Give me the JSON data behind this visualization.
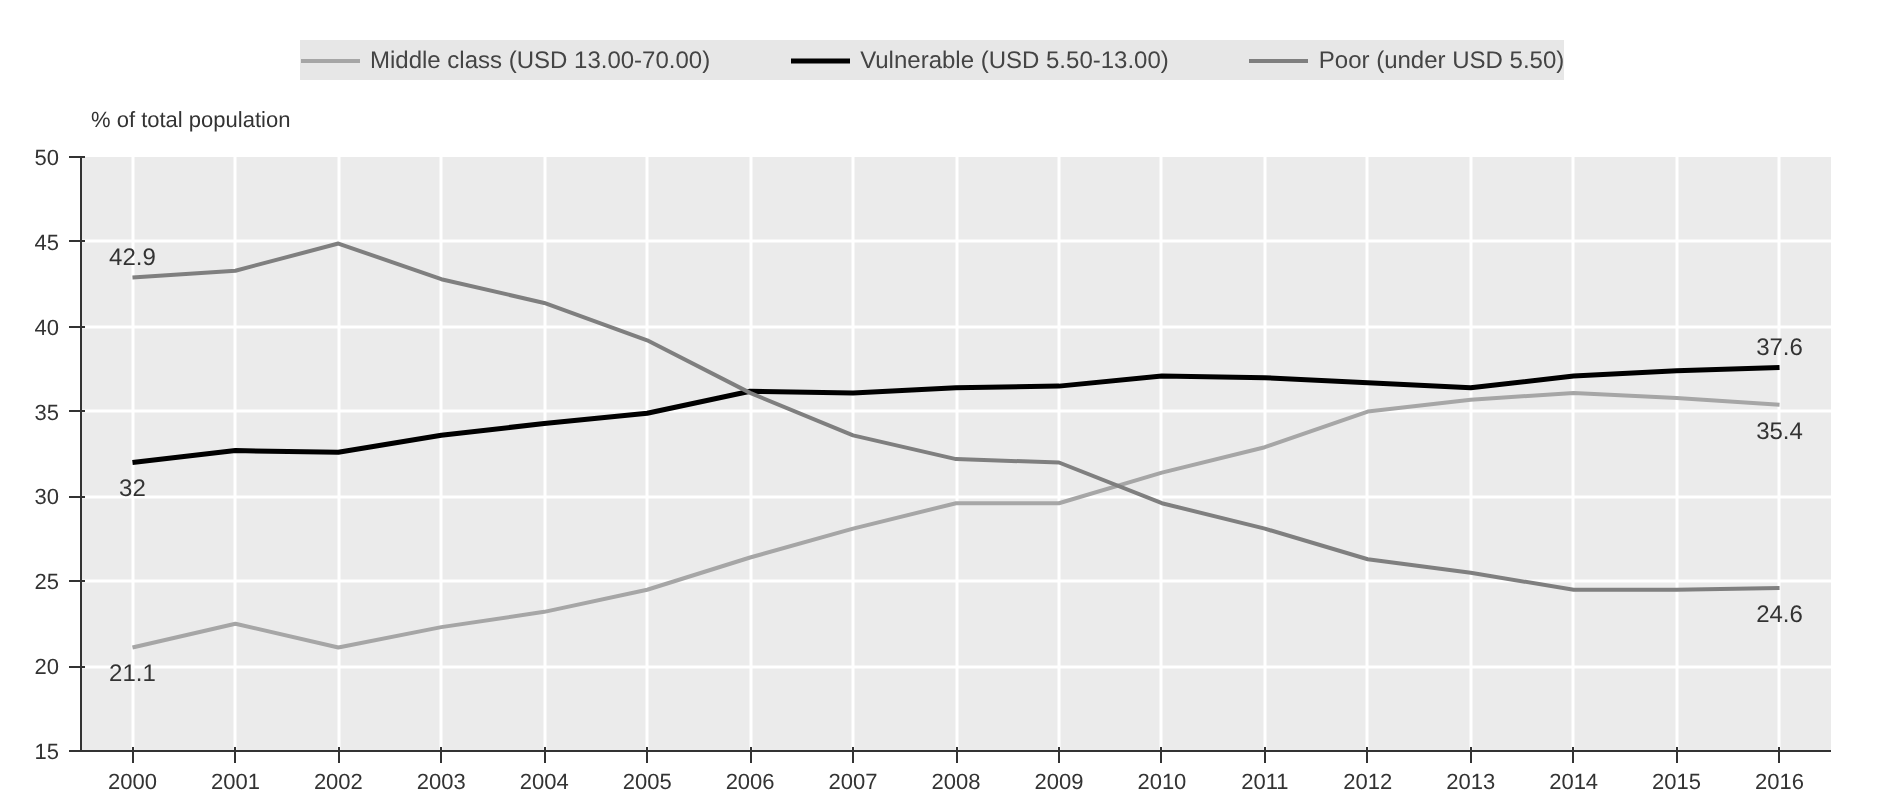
{
  "chart_data": {
    "type": "line",
    "ylabel": "% of total population",
    "x": [
      2000,
      2001,
      2002,
      2003,
      2004,
      2005,
      2006,
      2007,
      2008,
      2009,
      2010,
      2011,
      2012,
      2013,
      2014,
      2015,
      2016
    ],
    "xlim": [
      1999.5,
      2016.5
    ],
    "xticks": [
      2000,
      2001,
      2002,
      2003,
      2004,
      2005,
      2006,
      2007,
      2008,
      2009,
      2010,
      2011,
      2012,
      2013,
      2014,
      2015,
      2016
    ],
    "ylim": [
      15,
      50
    ],
    "yticks": [
      15,
      20,
      25,
      30,
      35,
      40,
      45,
      50
    ],
    "grid": true,
    "legend": "top",
    "series": [
      {
        "name": "Middle class (USD 13.00-70.00)",
        "color": "#a6a6a6",
        "values": [
          21.1,
          22.5,
          21.1,
          22.3,
          23.2,
          24.5,
          26.4,
          28.1,
          29.6,
          29.6,
          31.4,
          32.9,
          35.0,
          35.7,
          36.1,
          35.8,
          35.4
        ],
        "value_labels": [
          "21.1",
          null,
          null,
          null,
          null,
          null,
          null,
          null,
          null,
          null,
          null,
          null,
          null,
          null,
          null,
          null,
          "35.4"
        ]
      },
      {
        "name": "Vulnerable (USD 5.50-13.00)",
        "color": "#000000",
        "values": [
          32,
          32.7,
          32.6,
          33.6,
          34.3,
          34.9,
          36.2,
          36.1,
          36.4,
          36.5,
          37.1,
          37.0,
          36.7,
          36.4,
          37.1,
          37.4,
          37.6
        ],
        "value_labels": [
          "32",
          null,
          null,
          null,
          null,
          null,
          null,
          null,
          null,
          null,
          null,
          null,
          null,
          null,
          null,
          null,
          "37.6"
        ]
      },
      {
        "name": "Poor (under USD 5.50)",
        "color": "#7f7f7f",
        "values": [
          42.9,
          43.3,
          44.9,
          42.8,
          41.4,
          39.2,
          36.1,
          33.6,
          32.2,
          32.0,
          29.6,
          28.1,
          26.3,
          25.5,
          24.5,
          24.5,
          24.6
        ],
        "value_labels": [
          "42.9",
          null,
          null,
          null,
          null,
          null,
          null,
          null,
          null,
          null,
          null,
          null,
          null,
          null,
          null,
          null,
          "24.6"
        ]
      }
    ]
  }
}
